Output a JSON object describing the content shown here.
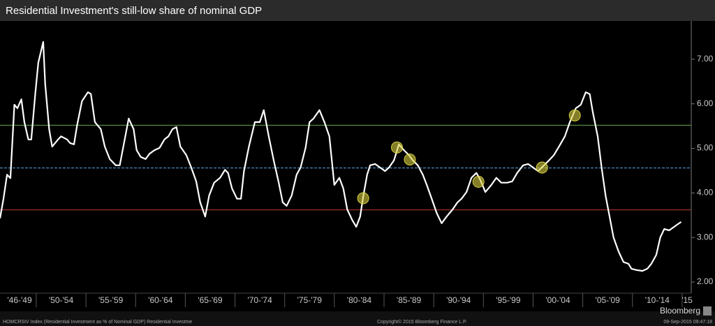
{
  "chart_data": {
    "type": "line",
    "title": "Residential Investment's still-low share of nominal GDP",
    "x": [
      1946.35,
      1946.7,
      1947.06,
      1947.4,
      1947.8,
      1948.1,
      1948.5,
      1948.8,
      1949.2,
      1949.5,
      1949.9,
      1950.2,
      1950.7,
      1950.9,
      1951.3,
      1951.6,
      1952.2,
      1952.5,
      1953.1,
      1953.4,
      1953.8,
      1954.1,
      1954.6,
      1955.2,
      1955.5,
      1955.9,
      1956.5,
      1956.9,
      1957.4,
      1958.0,
      1958.4,
      1958.9,
      1959.3,
      1959.8,
      1960.1,
      1960.5,
      1961.0,
      1961.4,
      1961.9,
      1962.4,
      1962.9,
      1963.3,
      1963.7,
      1964.1,
      1964.5,
      1965.1,
      1965.6,
      1966.1,
      1966.5,
      1967.0,
      1967.4,
      1967.9,
      1968.5,
      1969.0,
      1969.3,
      1969.7,
      1970.2,
      1970.6,
      1970.9,
      1971.4,
      1972.0,
      1972.5,
      1972.9,
      1973.4,
      1973.9,
      1974.4,
      1974.8,
      1975.2,
      1975.7,
      1976.2,
      1976.6,
      1977.1,
      1977.5,
      1977.9,
      1978.5,
      1979.0,
      1979.5,
      1980.0,
      1980.5,
      1980.9,
      1981.3,
      1981.8,
      1982.2,
      1982.6,
      1982.9,
      1983.3,
      1983.6,
      1984.1,
      1984.6,
      1985.1,
      1985.5,
      1986.0,
      1986.5,
      1987.0,
      1987.5,
      1987.9,
      1988.4,
      1988.9,
      1989.3,
      1989.8,
      1990.3,
      1990.8,
      1991.3,
      1991.9,
      1992.4,
      1992.8,
      1993.3,
      1993.8,
      1994.3,
      1994.7,
      1995.2,
      1995.8,
      1996.3,
      1996.8,
      1997.4,
      1997.9,
      1998.4,
      1999.0,
      1999.5,
      2000.0,
      2000.5,
      2001.1,
      2001.6,
      2002.1,
      2002.6,
      2003.2,
      2003.7,
      2004.3,
      2004.8,
      2005.3,
      2005.7,
      2006.0,
      2006.5,
      2006.9,
      2007.3,
      2007.7,
      2008.1,
      2008.6,
      2009.1,
      2009.6,
      2009.9,
      2010.4,
      2011.0,
      2011.5,
      2011.9,
      2012.4,
      2012.8,
      2013.2,
      2013.7,
      2014.2,
      2014.9
    ],
    "values": [
      3.43,
      3.87,
      4.41,
      4.33,
      5.98,
      5.9,
      6.1,
      5.59,
      5.2,
      5.2,
      6.22,
      6.92,
      7.39,
      6.45,
      5.43,
      5.04,
      5.2,
      5.27,
      5.2,
      5.12,
      5.09,
      5.51,
      6.06,
      6.26,
      6.22,
      5.59,
      5.43,
      5.04,
      4.76,
      4.62,
      4.62,
      5.2,
      5.67,
      5.43,
      4.96,
      4.81,
      4.76,
      4.88,
      4.96,
      5.01,
      5.2,
      5.27,
      5.43,
      5.48,
      5.04,
      4.85,
      4.57,
      4.26,
      3.79,
      3.47,
      3.94,
      4.23,
      4.34,
      4.52,
      4.45,
      4.1,
      3.87,
      3.87,
      4.49,
      5.04,
      5.59,
      5.59,
      5.86,
      5.27,
      4.73,
      4.23,
      3.79,
      3.71,
      3.94,
      4.41,
      4.57,
      5.01,
      5.59,
      5.67,
      5.86,
      5.59,
      5.27,
      4.18,
      4.34,
      4.1,
      3.63,
      3.39,
      3.24,
      3.47,
      3.91,
      4.41,
      4.62,
      4.65,
      4.57,
      4.49,
      4.57,
      4.73,
      5.09,
      4.96,
      4.85,
      4.73,
      4.62,
      4.41,
      4.18,
      3.87,
      3.55,
      3.32,
      3.47,
      3.63,
      3.79,
      3.87,
      4.02,
      4.34,
      4.45,
      4.29,
      4.02,
      4.18,
      4.34,
      4.23,
      4.23,
      4.26,
      4.45,
      4.62,
      4.65,
      4.57,
      4.49,
      4.62,
      4.73,
      4.85,
      5.04,
      5.27,
      5.59,
      5.9,
      5.98,
      6.26,
      6.22,
      5.83,
      5.27,
      4.57,
      3.94,
      3.47,
      3.0,
      2.69,
      2.45,
      2.41,
      2.3,
      2.27,
      2.25,
      2.3,
      2.41,
      2.61,
      3.0,
      3.19,
      3.16,
      3.24,
      3.35
    ],
    "color": "#ffffff",
    "xlim": [
      1946.35,
      2015.92
    ],
    "ylim": [
      1.75,
      7.86
    ],
    "xticks": [
      {
        "value": 1946,
        "label": "'46-'49"
      },
      {
        "value": 1950,
        "label": "'50-'54"
      },
      {
        "value": 1955,
        "label": "'55-'59"
      },
      {
        "value": 1960,
        "label": "'60-'64"
      },
      {
        "value": 1965,
        "label": "'65-'69"
      },
      {
        "value": 1970,
        "label": "'70-'74"
      },
      {
        "value": 1975,
        "label": "'75-'79"
      },
      {
        "value": 1980,
        "label": "'80-'84"
      },
      {
        "value": 1985,
        "label": "'85-'89"
      },
      {
        "value": 1990,
        "label": "'90-'94"
      },
      {
        "value": 1995,
        "label": "'95-'99"
      },
      {
        "value": 2000,
        "label": "'00-'04"
      },
      {
        "value": 2005,
        "label": "'05-'09"
      },
      {
        "value": 2010,
        "label": "'10-'14"
      },
      {
        "value": 2015,
        "label": "'15"
      }
    ],
    "yticks": [
      {
        "value": 2,
        "label": "2.00"
      },
      {
        "value": 3,
        "label": "3.00"
      },
      {
        "value": 4,
        "label": "4.00"
      },
      {
        "value": 5,
        "label": "5.00"
      },
      {
        "value": 6,
        "label": "6.00"
      },
      {
        "value": 7,
        "label": "7.00"
      }
    ],
    "reference_lines": [
      {
        "value": 5.52,
        "color": "#6aa84f",
        "dashed": false
      },
      {
        "value": 4.56,
        "color": "#5aa9e6",
        "dashed": true
      },
      {
        "value": 3.62,
        "color": "#c0392b",
        "dashed": false
      }
    ],
    "highlights": {
      "x": [
        1982.9,
        1986.3,
        1987.6,
        1994.5,
        2000.9,
        2004.2
      ],
      "y": [
        3.88,
        5.02,
        4.75,
        4.25,
        4.57,
        5.74
      ],
      "color": "#d8d040"
    },
    "footer": {
      "source": "HOMCRSIV Index (Residential Investment as % of Nominal GDP) Residential Investme",
      "copyright": "Copyright© 2015 Bloomberg Finance L.P.",
      "timestamp": "09-Sep-2015 09:47:18",
      "brand": "Bloomberg"
    }
  }
}
